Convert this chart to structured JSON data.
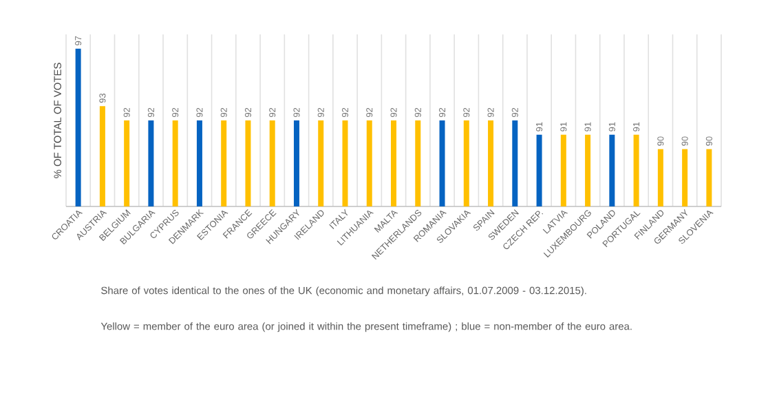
{
  "chart_data": {
    "type": "bar",
    "ylabel": "% OF TOTAL OF VOTES",
    "categories": [
      "CROATIA",
      "AUSTRIA",
      "BELGIUM",
      "BULGARIA",
      "CYPRUS",
      "DENMARK",
      "ESTONIA",
      "FRANCE",
      "GREECE",
      "HUNGARY",
      "IRELAND",
      "ITALY",
      "LITHUANIA",
      "MALTA",
      "NETHERLANDS",
      "ROMANIA",
      "SLOVAKIA",
      "SPAIN",
      "SWEDEN",
      "CZECH REP.",
      "LATVIA",
      "LUXEMBOURG",
      "POLAND",
      "PORTUGAL",
      "FINLAND",
      "GERMANY",
      "SLOVENIA"
    ],
    "values": [
      97,
      93,
      92,
      92,
      92,
      92,
      92,
      92,
      92,
      92,
      92,
      92,
      92,
      92,
      92,
      92,
      92,
      92,
      92,
      91,
      91,
      91,
      91,
      91,
      90,
      90,
      90
    ],
    "colors": [
      "#0563c1",
      "#ffc000",
      "#ffc000",
      "#0563c1",
      "#ffc000",
      "#0563c1",
      "#ffc000",
      "#ffc000",
      "#ffc000",
      "#0563c1",
      "#ffc000",
      "#ffc000",
      "#ffc000",
      "#ffc000",
      "#ffc000",
      "#0563c1",
      "#ffc000",
      "#ffc000",
      "#0563c1",
      "#0563c1",
      "#ffc000",
      "#ffc000",
      "#0563c1",
      "#ffc000",
      "#ffc000",
      "#ffc000",
      "#ffc000"
    ],
    "ylim": [
      86,
      98
    ],
    "data_labels": true,
    "grid": "x",
    "annotations": [
      "Share of votes identical to the ones of the UK (economic and monetary affairs, 01.07.2009 - 03.12.2015).",
      "Yellow = member of the euro area (or joined it within the present timeframe) ; blue = non-member of the euro area."
    ]
  }
}
